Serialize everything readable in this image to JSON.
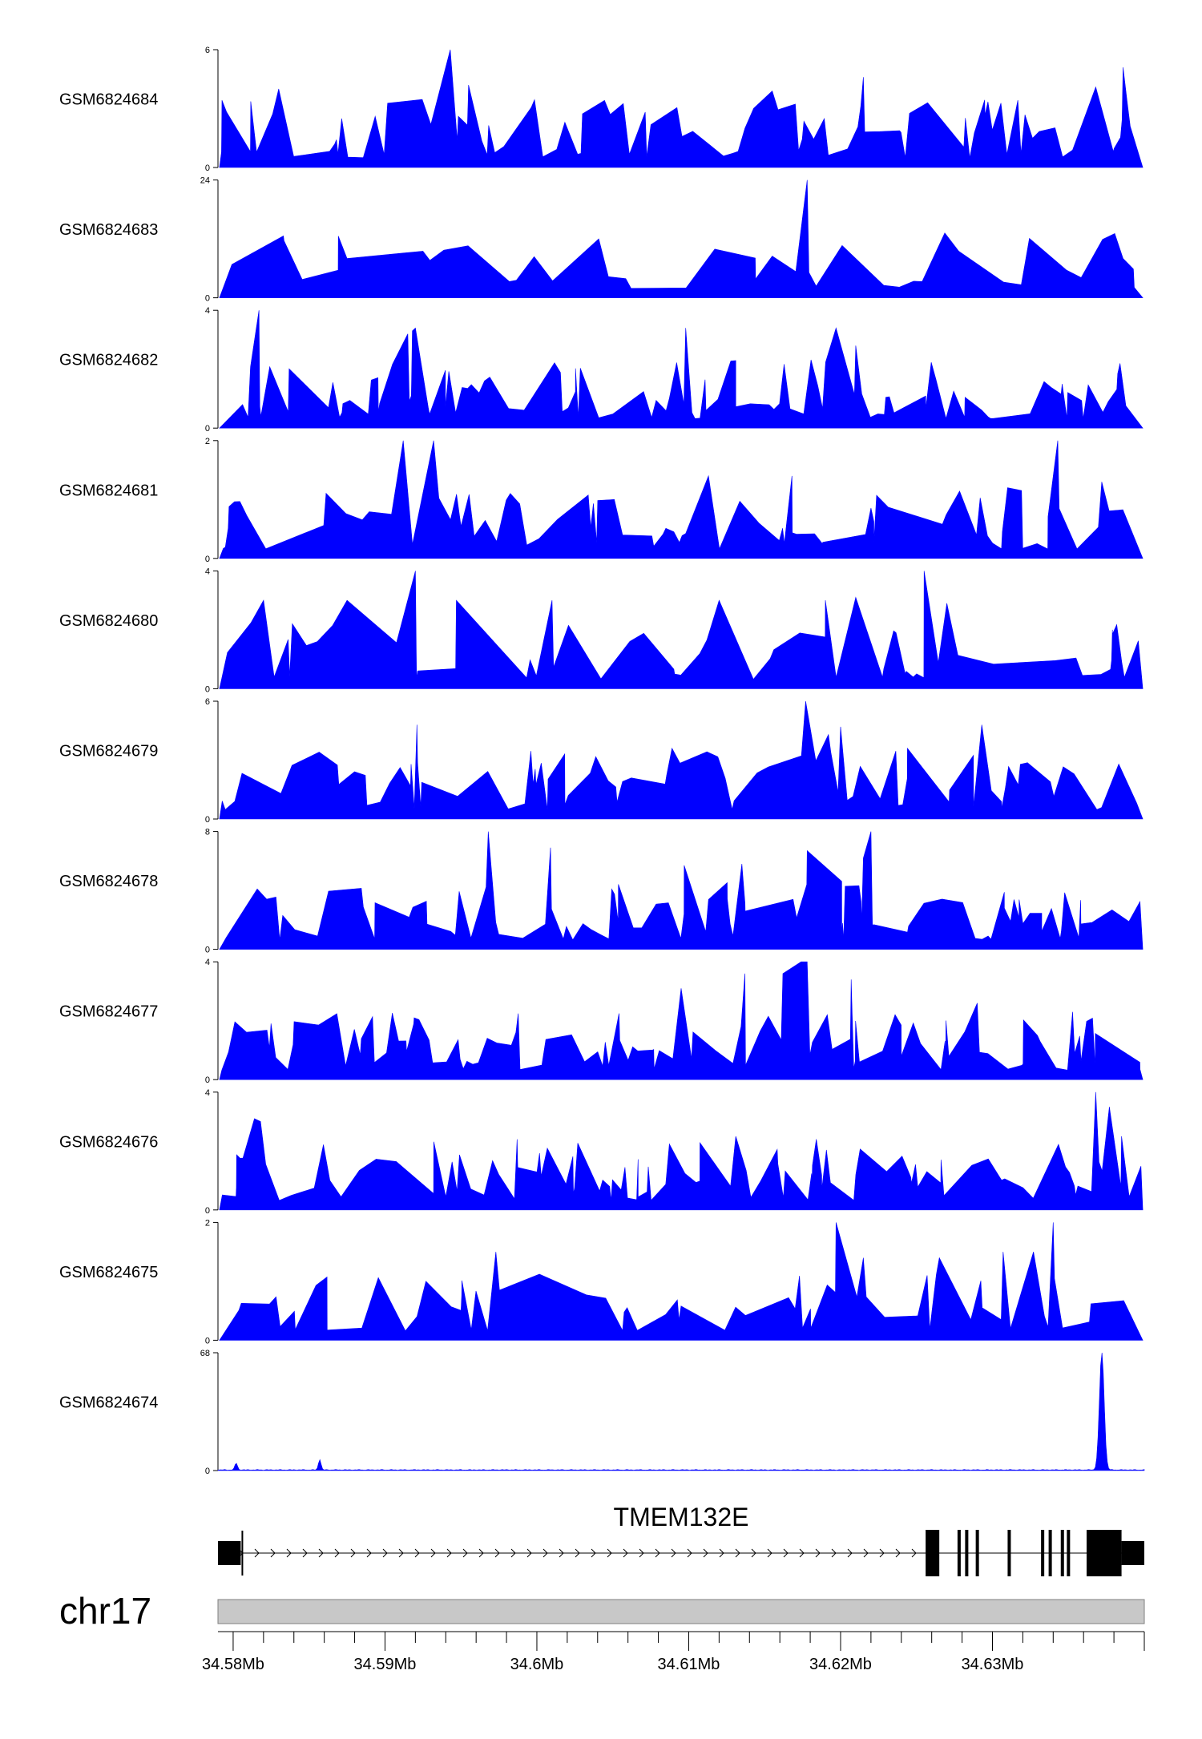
{
  "chart_data": {
    "type": "area",
    "title": "",
    "xlabel": "",
    "ylabel": "",
    "chromosome": "chr17",
    "x_unit": "bp",
    "xlim": [
      34579000,
      34640000
    ],
    "x_ticks": [
      34580000,
      34590000,
      34600000,
      34610000,
      34620000,
      34630000
    ],
    "x_tick_labels": [
      "34.58Mb",
      "34.59Mb",
      "34.6Mb",
      "34.61Mb",
      "34.62Mb",
      "34.63Mb"
    ],
    "track_color": "#0000ff",
    "grid": false,
    "tracks": [
      {
        "name": "GSM6824684",
        "ylim": [
          0,
          6
        ],
        "y_tick_labels": [
          "0",
          "6"
        ],
        "seed": 84,
        "density": 95,
        "peaks": [
          [
            34594300,
            6
          ],
          [
            34621500,
            4.6
          ],
          [
            34638600,
            5.1
          ],
          [
            34583000,
            4
          ],
          [
            34595500,
            4.2
          ],
          [
            34615500,
            3.9
          ],
          [
            34636800,
            4.1
          ]
        ]
      },
      {
        "name": "GSM6824683",
        "ylim": [
          0,
          24
        ],
        "y_tick_labels": [
          "0",
          "24"
        ],
        "seed": 83,
        "density": 40,
        "peaks": [
          [
            34617800,
            24
          ],
          [
            34587500,
            8
          ],
          [
            34592500,
            9.5
          ],
          [
            34615500,
            8.5
          ],
          [
            34621000,
            8
          ],
          [
            34638600,
            8
          ]
        ]
      },
      {
        "name": "GSM6824682",
        "ylim": [
          0,
          4
        ],
        "y_tick_labels": [
          "0",
          "4"
        ],
        "seed": 82,
        "density": 110,
        "peaks": [
          [
            34581700,
            4
          ],
          [
            34591500,
            3.2
          ],
          [
            34592000,
            3.4
          ],
          [
            34591800,
            3.3
          ],
          [
            34609800,
            3.4
          ],
          [
            34619700,
            3.4
          ],
          [
            34621000,
            2.8
          ],
          [
            34638400,
            2.2
          ]
        ]
      },
      {
        "name": "GSM6824681",
        "ylim": [
          0,
          2
        ],
        "y_tick_labels": [
          "0",
          "2"
        ],
        "seed": 81,
        "density": 80,
        "peaks": [
          [
            34591200,
            2
          ],
          [
            34593200,
            2
          ],
          [
            34634300,
            2
          ],
          [
            34631000,
            1.2
          ],
          [
            34611300,
            1.4
          ],
          [
            34616800,
            1.4
          ],
          [
            34637200,
            1.3
          ]
        ]
      },
      {
        "name": "GSM6824680",
        "ylim": [
          0,
          4
        ],
        "y_tick_labels": [
          "0",
          "4"
        ],
        "seed": 80,
        "density": 55,
        "peaks": [
          [
            34592000,
            4
          ],
          [
            34625500,
            4
          ],
          [
            34582000,
            3
          ],
          [
            34587500,
            3
          ],
          [
            34594700,
            3
          ],
          [
            34601000,
            3
          ],
          [
            34612000,
            3
          ],
          [
            34619000,
            3
          ],
          [
            34621000,
            3.1
          ],
          [
            34627000,
            2.9
          ],
          [
            34637900,
            2
          ]
        ]
      },
      {
        "name": "GSM6824679",
        "ylim": [
          0,
          6
        ],
        "y_tick_labels": [
          "0",
          "6"
        ],
        "seed": 79,
        "density": 85,
        "peaks": [
          [
            34617700,
            6
          ],
          [
            34592100,
            4.8
          ],
          [
            34619200,
            4.3
          ],
          [
            34620000,
            4.7
          ],
          [
            34629300,
            4.8
          ],
          [
            34624400,
            3.6
          ],
          [
            34608900,
            3.6
          ]
        ]
      },
      {
        "name": "GSM6824678",
        "ylim": [
          0,
          8
        ],
        "y_tick_labels": [
          "0",
          "8"
        ],
        "seed": 78,
        "density": 95,
        "peaks": [
          [
            34596800,
            8
          ],
          [
            34622000,
            8
          ],
          [
            34600900,
            6.9
          ],
          [
            34617800,
            6.7
          ],
          [
            34621500,
            6.2
          ],
          [
            34613500,
            5.8
          ],
          [
            34609700,
            5.7
          ]
        ]
      },
      {
        "name": "GSM6824677",
        "ylim": [
          0,
          4
        ],
        "y_tick_labels": [
          "0",
          "4"
        ],
        "seed": 77,
        "density": 110,
        "peaks": [
          [
            34617400,
            4
          ],
          [
            34617800,
            4
          ],
          [
            34616200,
            3.6
          ],
          [
            34609500,
            3.1
          ],
          [
            34620700,
            3.4
          ],
          [
            34613700,
            3.6
          ],
          [
            34629000,
            2.6
          ]
        ]
      },
      {
        "name": "GSM6824676",
        "ylim": [
          0,
          4
        ],
        "y_tick_labels": [
          "0",
          "4"
        ],
        "seed": 76,
        "density": 105,
        "peaks": [
          [
            34636800,
            4
          ],
          [
            34637700,
            3.5
          ],
          [
            34581400,
            3.1
          ],
          [
            34581800,
            3
          ],
          [
            34618400,
            2.4
          ],
          [
            34598700,
            2.4
          ],
          [
            34613100,
            2.5
          ],
          [
            34638500,
            2.5
          ]
        ]
      },
      {
        "name": "GSM6824675",
        "ylim": [
          0,
          2
        ],
        "y_tick_labels": [
          "0",
          "2"
        ],
        "seed": 75,
        "density": 65,
        "peaks": [
          [
            34597300,
            1.5
          ],
          [
            34619700,
            2
          ],
          [
            34634000,
            2
          ],
          [
            34632700,
            1.5
          ],
          [
            34621500,
            1.4
          ],
          [
            34626500,
            1.4
          ],
          [
            34630700,
            1.5
          ],
          [
            34625700,
            1.1
          ]
        ]
      },
      {
        "name": "GSM6824674",
        "ylim": [
          0,
          68
        ],
        "y_tick_labels": [
          "0",
          "68"
        ],
        "seed": 74,
        "density": 0,
        "peaks": [
          [
            34580200,
            4
          ],
          [
            34585700,
            6
          ],
          [
            34637200,
            68
          ]
        ]
      }
    ],
    "gene": {
      "name": "TMEM132E",
      "strand": "+",
      "transcript_start": 34579000,
      "transcript_end": 34640000,
      "thin_blocks": [
        [
          34579000,
          34580500
        ],
        [
          34638500,
          34640000
        ]
      ],
      "exons": [
        [
          34579000,
          34580500
        ],
        [
          34625600,
          34626500
        ],
        [
          34627700,
          34627800
        ],
        [
          34628200,
          34628300
        ],
        [
          34628900,
          34629000
        ],
        [
          34631000,
          34631100
        ],
        [
          34633200,
          34633300
        ],
        [
          34633700,
          34633800
        ],
        [
          34634500,
          34634600
        ],
        [
          34634900,
          34635000
        ],
        [
          34636200,
          34638500
        ],
        [
          34638500,
          34640000
        ]
      ]
    }
  }
}
